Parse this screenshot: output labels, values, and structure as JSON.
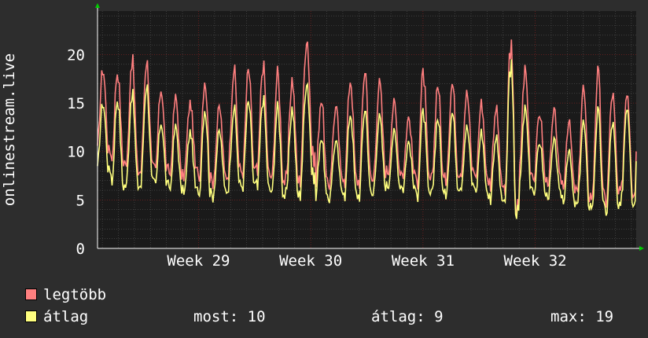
{
  "chart_data": {
    "type": "line",
    "title": "",
    "ylabel": "onlinestream.live",
    "xlabel": "",
    "ylim": [
      0,
      24.5
    ],
    "yticks": [
      0,
      5,
      10,
      15,
      20
    ],
    "x_range_weeks": [
      28.1,
      32.9
    ],
    "xticks": [
      {
        "pos": 29,
        "label": "Week 29"
      },
      {
        "pos": 30,
        "label": "Week 30"
      },
      {
        "pos": 31,
        "label": "Week 31"
      },
      {
        "pos": 32,
        "label": "Week 32"
      }
    ],
    "grid": true,
    "series": [
      {
        "name": "legtöbb",
        "color": "#ff7f7f",
        "daily_peaks": [
          18.5,
          18.3,
          19.5,
          19.5,
          16.5,
          15.5,
          15.0,
          17.5,
          14.5,
          18.5,
          18.3,
          19.0,
          18.0,
          17.5,
          22.0,
          15.5,
          14.5,
          17.5,
          18.5,
          17.0,
          15.0,
          13.5,
          18.0,
          17.0,
          17.0,
          16.0,
          15.0,
          14.5,
          21.0,
          18.5,
          14.0,
          14.0,
          13.0,
          16.5,
          18.0,
          16.0,
          16.5
        ],
        "daily_troughs": [
          10.0,
          9.0,
          8.0,
          8.0,
          8.0,
          7.5,
          8.0,
          7.0,
          7.5,
          8.0,
          8.0,
          7.5,
          7.0,
          7.0,
          9.5,
          6.5,
          7.5,
          7.0,
          7.0,
          8.0,
          8.0,
          7.5,
          7.0,
          7.0,
          8.0,
          8.0,
          7.0,
          6.5,
          4.0,
          8.0,
          7.0,
          7.0,
          6.0,
          5.5,
          5.0,
          5.5,
          6.0
        ]
      },
      {
        "name": "átlag",
        "color": "#ffff7f",
        "daily_peaks": [
          15.0,
          15.5,
          16.0,
          17.0,
          13.0,
          12.5,
          12.0,
          14.5,
          12.0,
          14.5,
          15.0,
          15.5,
          14.5,
          14.5,
          17.5,
          11.5,
          11.0,
          14.0,
          14.5,
          13.5,
          12.0,
          11.0,
          14.0,
          13.5,
          14.0,
          12.5,
          12.0,
          11.5,
          19.0,
          14.5,
          11.0,
          11.0,
          10.0,
          13.0,
          14.0,
          13.0,
          15.0
        ],
        "daily_troughs": [
          8.0,
          6.5,
          6.5,
          6.5,
          6.5,
          6.0,
          6.0,
          5.5,
          6.0,
          6.5,
          6.5,
          6.0,
          5.5,
          5.5,
          7.5,
          5.0,
          6.0,
          5.5,
          5.5,
          6.5,
          6.5,
          6.0,
          5.5,
          5.5,
          6.5,
          6.5,
          5.5,
          5.0,
          3.5,
          6.5,
          5.5,
          5.5,
          4.5,
          4.5,
          4.0,
          4.0,
          5.0
        ]
      }
    ]
  },
  "legend": {
    "max_name": "legtöbb",
    "avg_name": "átlag",
    "now": "most: 10",
    "average": "átlag: 9",
    "maximum": "max: 19"
  },
  "colors": {
    "max": "#ff7f7f",
    "avg": "#ffff7f",
    "background": "#2d2d2d",
    "plot": "#1a1a1a",
    "grid": "#555555",
    "gridMajor": "#7a2020",
    "arrow": "#00cc00"
  }
}
